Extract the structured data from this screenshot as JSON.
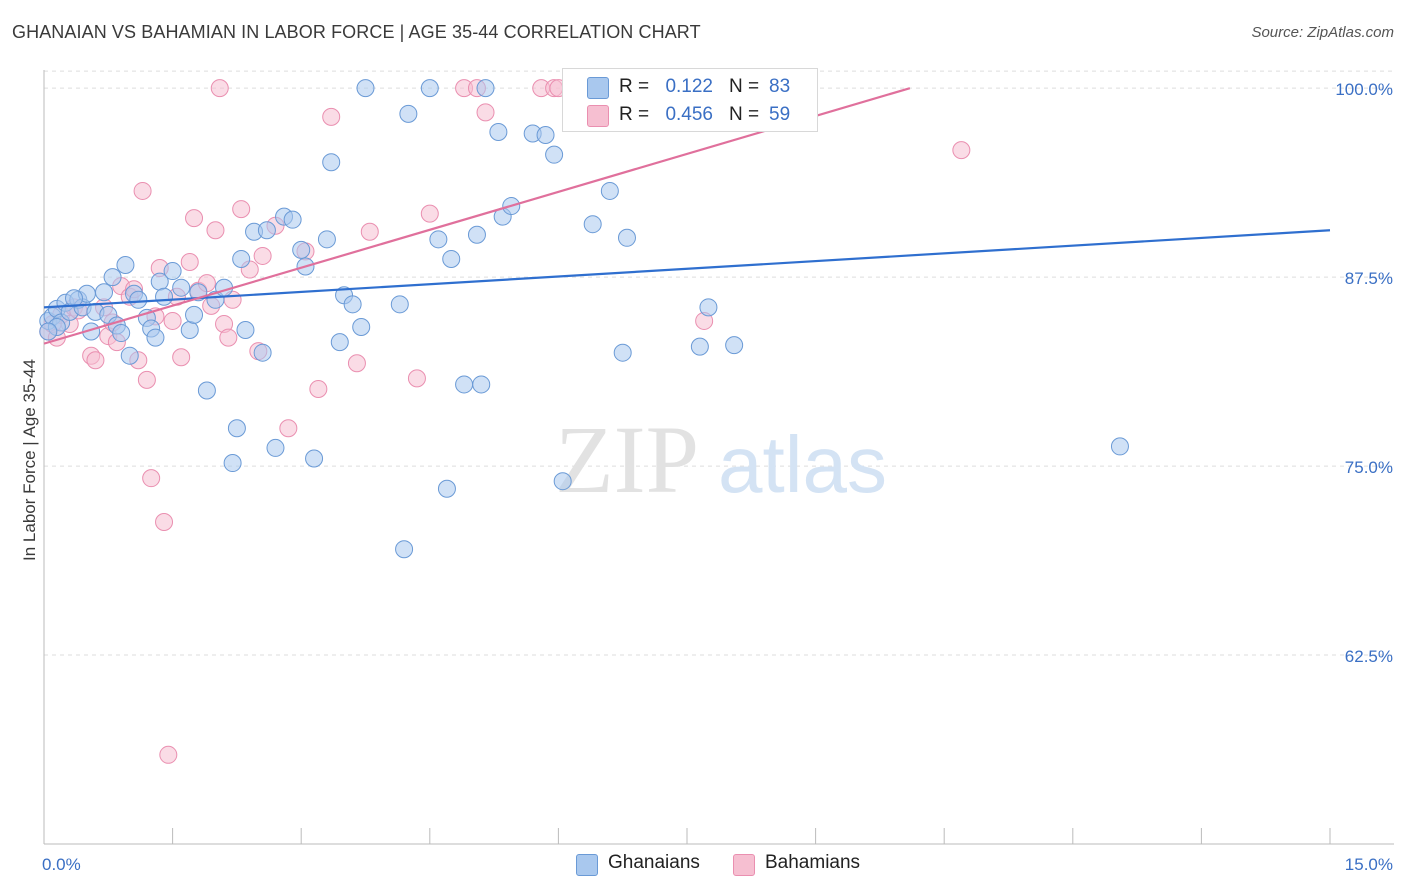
{
  "title": "GHANAIAN VS BAHAMIAN IN LABOR FORCE | AGE 35-44 CORRELATION CHART",
  "source": "Source: ZipAtlas.com",
  "watermark": {
    "zip": "ZIP",
    "atlas": "atlas"
  },
  "colors": {
    "blue_fill": "#a9c8ee",
    "blue_stroke": "#6a9ad6",
    "blue_line": "#2f6fcf",
    "pink_fill": "#f6bfd1",
    "pink_stroke": "#ea8fb0",
    "pink_line": "#e0709c",
    "axis_text": "#3a6fc4",
    "grid": "#dedede"
  },
  "legend": {
    "rows": [
      {
        "r_label": "R =",
        "r_value": "0.122",
        "n_label": "N =",
        "n_value": "83",
        "series": "blue"
      },
      {
        "r_label": "R =",
        "r_value": "0.456",
        "n_label": "N =",
        "n_value": "59",
        "series": "pink"
      }
    ],
    "bottom": [
      {
        "label": "Ghanaians",
        "series": "blue"
      },
      {
        "label": "Bahamians",
        "series": "pink"
      }
    ]
  },
  "chart_data": {
    "type": "scatter",
    "title": "GHANAIAN VS BAHAMIAN IN LABOR FORCE | AGE 35-44 CORRELATION CHART",
    "xlabel": "",
    "ylabel": "In Labor Force | Age 35-44",
    "xlim": [
      0,
      15
    ],
    "ylim": [
      50,
      101.2
    ],
    "x_tick_labels": [
      "0.0%",
      "15.0%"
    ],
    "y_ticks": [
      62.5,
      75.0,
      87.5,
      100.0
    ],
    "y_tick_labels": [
      "62.5%",
      "75.0%",
      "87.5%",
      "100.0%"
    ],
    "series": [
      {
        "name": "Ghanaians",
        "color": "blue",
        "trend": {
          "x": [
            0,
            15
          ],
          "y": [
            85.5,
            90.6
          ]
        },
        "points": [
          [
            0.05,
            84.6
          ],
          [
            0.1,
            84.9
          ],
          [
            0.15,
            85.4
          ],
          [
            0.2,
            84.5
          ],
          [
            0.25,
            85.8
          ],
          [
            0.3,
            85.2
          ],
          [
            0.4,
            86.0
          ],
          [
            0.45,
            85.5
          ],
          [
            0.5,
            86.4
          ],
          [
            0.55,
            83.9
          ],
          [
            0.6,
            85.2
          ],
          [
            0.7,
            86.5
          ],
          [
            0.75,
            85.0
          ],
          [
            0.8,
            87.5
          ],
          [
            0.85,
            84.3
          ],
          [
            0.9,
            83.8
          ],
          [
            0.95,
            88.3
          ],
          [
            1.0,
            82.3
          ],
          [
            1.05,
            86.4
          ],
          [
            1.1,
            86.0
          ],
          [
            1.2,
            84.8
          ],
          [
            1.25,
            84.1
          ],
          [
            1.3,
            83.5
          ],
          [
            1.35,
            87.2
          ],
          [
            1.4,
            86.2
          ],
          [
            1.5,
            87.9
          ],
          [
            1.6,
            86.8
          ],
          [
            1.7,
            84.0
          ],
          [
            1.75,
            85.0
          ],
          [
            1.8,
            86.5
          ],
          [
            1.9,
            80.0
          ],
          [
            2.0,
            86.0
          ],
          [
            2.1,
            86.8
          ],
          [
            2.2,
            75.2
          ],
          [
            2.25,
            77.5
          ],
          [
            2.3,
            88.7
          ],
          [
            2.35,
            84.0
          ],
          [
            2.45,
            90.5
          ],
          [
            2.55,
            82.5
          ],
          [
            2.6,
            90.6
          ],
          [
            2.7,
            76.2
          ],
          [
            2.8,
            91.5
          ],
          [
            2.9,
            91.3
          ],
          [
            3.0,
            89.3
          ],
          [
            3.05,
            88.2
          ],
          [
            3.15,
            75.5
          ],
          [
            3.3,
            90.0
          ],
          [
            3.35,
            95.1
          ],
          [
            3.45,
            83.2
          ],
          [
            3.5,
            86.3
          ],
          [
            3.6,
            85.7
          ],
          [
            3.7,
            84.2
          ],
          [
            3.75,
            100.0
          ],
          [
            4.15,
            85.7
          ],
          [
            4.2,
            69.5
          ],
          [
            4.25,
            98.3
          ],
          [
            4.5,
            100.0
          ],
          [
            4.6,
            90.0
          ],
          [
            4.7,
            73.5
          ],
          [
            4.75,
            88.7
          ],
          [
            4.9,
            80.4
          ],
          [
            5.05,
            90.3
          ],
          [
            5.1,
            80.4
          ],
          [
            5.15,
            100.0
          ],
          [
            5.3,
            97.1
          ],
          [
            5.35,
            91.5
          ],
          [
            5.45,
            92.2
          ],
          [
            5.7,
            97.0
          ],
          [
            5.85,
            96.9
          ],
          [
            5.95,
            95.6
          ],
          [
            6.05,
            74.0
          ],
          [
            6.4,
            91.0
          ],
          [
            6.6,
            93.2
          ],
          [
            6.75,
            82.5
          ],
          [
            6.8,
            90.1
          ],
          [
            7.65,
            82.9
          ],
          [
            7.75,
            85.5
          ],
          [
            7.5,
            100.0
          ],
          [
            8.05,
            83.0
          ],
          [
            12.55,
            76.3
          ],
          [
            0.15,
            84.2
          ],
          [
            0.05,
            83.9
          ],
          [
            0.35,
            86.1
          ]
        ]
      },
      {
        "name": "Bahamians",
        "color": "pink",
        "trend": {
          "x": [
            0,
            10.1
          ],
          "y": [
            83.1,
            100.0
          ]
        },
        "points": [
          [
            0.05,
            83.9
          ],
          [
            0.1,
            84.4
          ],
          [
            0.15,
            83.5
          ],
          [
            0.2,
            85.0
          ],
          [
            0.3,
            84.4
          ],
          [
            0.35,
            85.5
          ],
          [
            0.4,
            85.3
          ],
          [
            0.55,
            82.3
          ],
          [
            0.6,
            82.0
          ],
          [
            0.7,
            85.5
          ],
          [
            0.75,
            83.6
          ],
          [
            0.8,
            84.5
          ],
          [
            0.85,
            83.2
          ],
          [
            0.9,
            86.9
          ],
          [
            1.0,
            86.2
          ],
          [
            1.05,
            86.7
          ],
          [
            1.1,
            82.0
          ],
          [
            1.15,
            93.2
          ],
          [
            1.2,
            80.7
          ],
          [
            1.25,
            74.2
          ],
          [
            1.3,
            84.9
          ],
          [
            1.35,
            88.1
          ],
          [
            1.4,
            71.3
          ],
          [
            1.45,
            55.9
          ],
          [
            1.5,
            84.6
          ],
          [
            1.55,
            86.2
          ],
          [
            1.6,
            82.2
          ],
          [
            1.7,
            88.5
          ],
          [
            1.75,
            91.4
          ],
          [
            1.8,
            86.6
          ],
          [
            1.9,
            87.1
          ],
          [
            1.95,
            85.6
          ],
          [
            2.0,
            90.6
          ],
          [
            2.05,
            100.0
          ],
          [
            2.1,
            84.4
          ],
          [
            2.15,
            83.5
          ],
          [
            2.2,
            86.0
          ],
          [
            2.3,
            92.0
          ],
          [
            2.4,
            88.0
          ],
          [
            2.5,
            82.6
          ],
          [
            2.55,
            88.9
          ],
          [
            2.7,
            90.9
          ],
          [
            2.85,
            77.5
          ],
          [
            3.05,
            89.2
          ],
          [
            3.2,
            80.1
          ],
          [
            3.35,
            98.1
          ],
          [
            3.65,
            81.8
          ],
          [
            3.8,
            90.5
          ],
          [
            4.35,
            80.8
          ],
          [
            4.5,
            91.7
          ],
          [
            4.9,
            100.0
          ],
          [
            5.05,
            100.0
          ],
          [
            5.15,
            98.4
          ],
          [
            5.8,
            100.0
          ],
          [
            5.95,
            100.0
          ],
          [
            6.0,
            100.0
          ],
          [
            6.45,
            100.0
          ],
          [
            7.7,
            84.6
          ],
          [
            10.7,
            95.9
          ]
        ]
      }
    ]
  }
}
